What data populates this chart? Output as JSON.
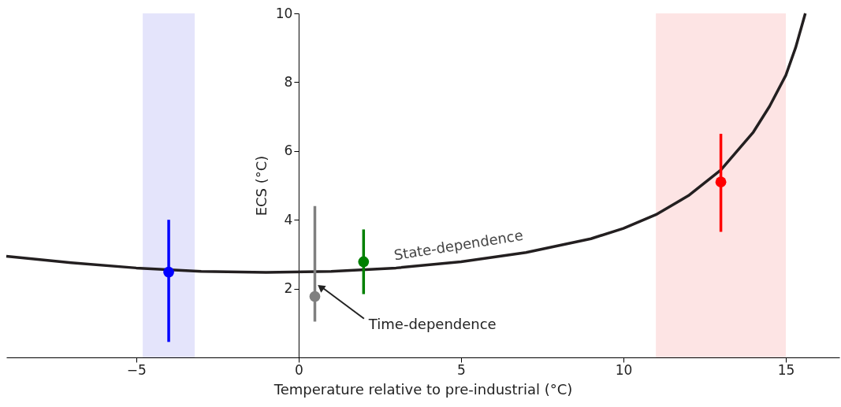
{
  "chart_data": {
    "type": "line",
    "xlabel": "Temperature relative to pre-industrial (°C)",
    "ylabel": "ECS (°C)",
    "xlim": [
      -9.0,
      16.65
    ],
    "ylim": [
      0,
      10
    ],
    "xticks": [
      {
        "value": -5,
        "label": "−5"
      },
      0,
      5,
      10,
      15
    ],
    "yticks": [
      2,
      4,
      6,
      8,
      10
    ],
    "series": [
      {
        "name": "State-dependence",
        "color": "#231f20",
        "x": [
          -9,
          -7,
          -5,
          -3,
          -1,
          1,
          3,
          5,
          7,
          9,
          10,
          11,
          12,
          13,
          14,
          14.5,
          15,
          15.3,
          15.6
        ],
        "values": [
          2.94,
          2.75,
          2.6,
          2.5,
          2.47,
          2.5,
          2.6,
          2.78,
          3.05,
          3.45,
          3.75,
          4.15,
          4.7,
          5.45,
          6.55,
          7.3,
          8.2,
          9.0,
          10.0
        ]
      },
      {
        "type": "scatter",
        "color": "#0000ff",
        "x": [
          -4
        ],
        "values": [
          2.48
        ],
        "errors": [
          [
            0.45,
            4.0
          ]
        ]
      },
      {
        "type": "scatter",
        "color": "#808080",
        "x": [
          0.5
        ],
        "values": [
          1.77
        ],
        "errors": [
          [
            1.04,
            4.4
          ]
        ]
      },
      {
        "type": "scatter",
        "color": "#008000",
        "x": [
          2
        ],
        "values": [
          2.78
        ],
        "errors": [
          [
            1.84,
            3.72
          ]
        ]
      },
      {
        "type": "scatter",
        "color": "#ff0000",
        "x": [
          13
        ],
        "values": [
          5.1
        ],
        "errors": [
          [
            3.65,
            6.5
          ]
        ]
      }
    ],
    "bands": [
      {
        "axis": "x",
        "from": -4.8,
        "to": -3.2,
        "color": "#e4e4fb"
      },
      {
        "axis": "x",
        "from": 11,
        "to": 15,
        "color": "#fde4e4"
      }
    ],
    "annotations": [
      {
        "text": "Time-dependence",
        "x": 0.63,
        "y": 2.11
      }
    ]
  }
}
